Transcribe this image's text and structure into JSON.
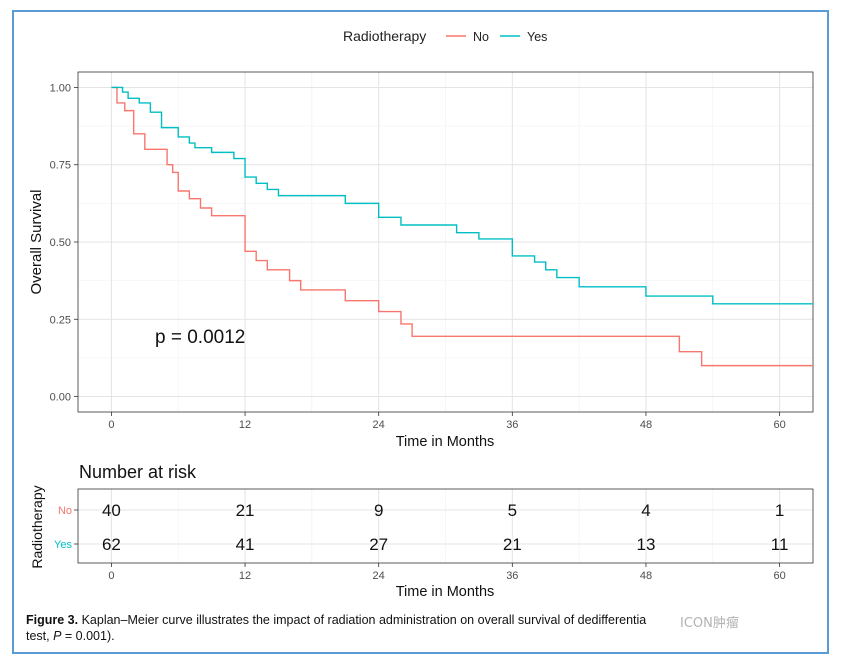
{
  "legend": {
    "title": "Radiotherapy",
    "items": [
      {
        "label": "No",
        "color": "#F8766D"
      },
      {
        "label": "Yes",
        "color": "#00BFC4"
      }
    ]
  },
  "pvalue_text": "p = 0.0012",
  "risk_table": {
    "title": "Number at risk",
    "ylabel": "Radiotherapy",
    "xlabel": "Time in Months",
    "x_ticks": [
      "0",
      "12",
      "24",
      "36",
      "48",
      "60"
    ],
    "rows": [
      {
        "label": "No",
        "color": "#F8766D",
        "values": [
          "40",
          "21",
          "9",
          "5",
          "4",
          "1"
        ]
      },
      {
        "label": "Yes",
        "color": "#00BFC4",
        "values": [
          "62",
          "41",
          "27",
          "21",
          "13",
          "11"
        ]
      }
    ]
  },
  "caption": {
    "label": "Figure 3.",
    "text": "Kaplan–Meier curve illustrates the impact of radiation administration on overall survival of dedifferentia",
    "text2": "test, ",
    "pvar": "P",
    "text3": " = 0.001)."
  },
  "watermark": "ICON肿瘤",
  "chart_data": {
    "type": "line",
    "title": "",
    "xlabel": "Time in Months",
    "ylabel": "Overall Survival",
    "xlim": [
      -3,
      63
    ],
    "ylim": [
      -0.05,
      1.05
    ],
    "x_ticks": [
      0,
      12,
      24,
      36,
      48,
      60
    ],
    "y_ticks": [
      0.0,
      0.25,
      0.5,
      0.75,
      1.0
    ],
    "y_tick_labels": [
      "0.00",
      "0.25",
      "0.50",
      "0.75",
      "1.00"
    ],
    "grid": true,
    "legend_position": "top",
    "series": [
      {
        "name": "No",
        "color": "#F8766D",
        "steps": [
          [
            0,
            1.0
          ],
          [
            0.5,
            0.95
          ],
          [
            1.2,
            0.925
          ],
          [
            2,
            0.85
          ],
          [
            3,
            0.8
          ],
          [
            5,
            0.75
          ],
          [
            5.5,
            0.725
          ],
          [
            6,
            0.665
          ],
          [
            7,
            0.64
          ],
          [
            8,
            0.61
          ],
          [
            9,
            0.585
          ],
          [
            12,
            0.47
          ],
          [
            13,
            0.44
          ],
          [
            14,
            0.41
          ],
          [
            16,
            0.375
          ],
          [
            17,
            0.345
          ],
          [
            21,
            0.31
          ],
          [
            24,
            0.275
          ],
          [
            26,
            0.235
          ],
          [
            27,
            0.195
          ],
          [
            51,
            0.145
          ],
          [
            53,
            0.1
          ],
          [
            63,
            0.1
          ]
        ]
      },
      {
        "name": "Yes",
        "color": "#00BFC4",
        "steps": [
          [
            0,
            1.0
          ],
          [
            1,
            0.985
          ],
          [
            1.5,
            0.965
          ],
          [
            2.5,
            0.95
          ],
          [
            3.5,
            0.92
          ],
          [
            4.5,
            0.87
          ],
          [
            6,
            0.84
          ],
          [
            7,
            0.82
          ],
          [
            7.5,
            0.805
          ],
          [
            9,
            0.79
          ],
          [
            11,
            0.77
          ],
          [
            12,
            0.71
          ],
          [
            13,
            0.69
          ],
          [
            14,
            0.67
          ],
          [
            15,
            0.65
          ],
          [
            21,
            0.625
          ],
          [
            24,
            0.58
          ],
          [
            26,
            0.555
          ],
          [
            31,
            0.53
          ],
          [
            33,
            0.51
          ],
          [
            36,
            0.455
          ],
          [
            38,
            0.435
          ],
          [
            39,
            0.41
          ],
          [
            40,
            0.385
          ],
          [
            42,
            0.355
          ],
          [
            48,
            0.325
          ],
          [
            54,
            0.3
          ],
          [
            63,
            0.3
          ]
        ]
      }
    ]
  }
}
